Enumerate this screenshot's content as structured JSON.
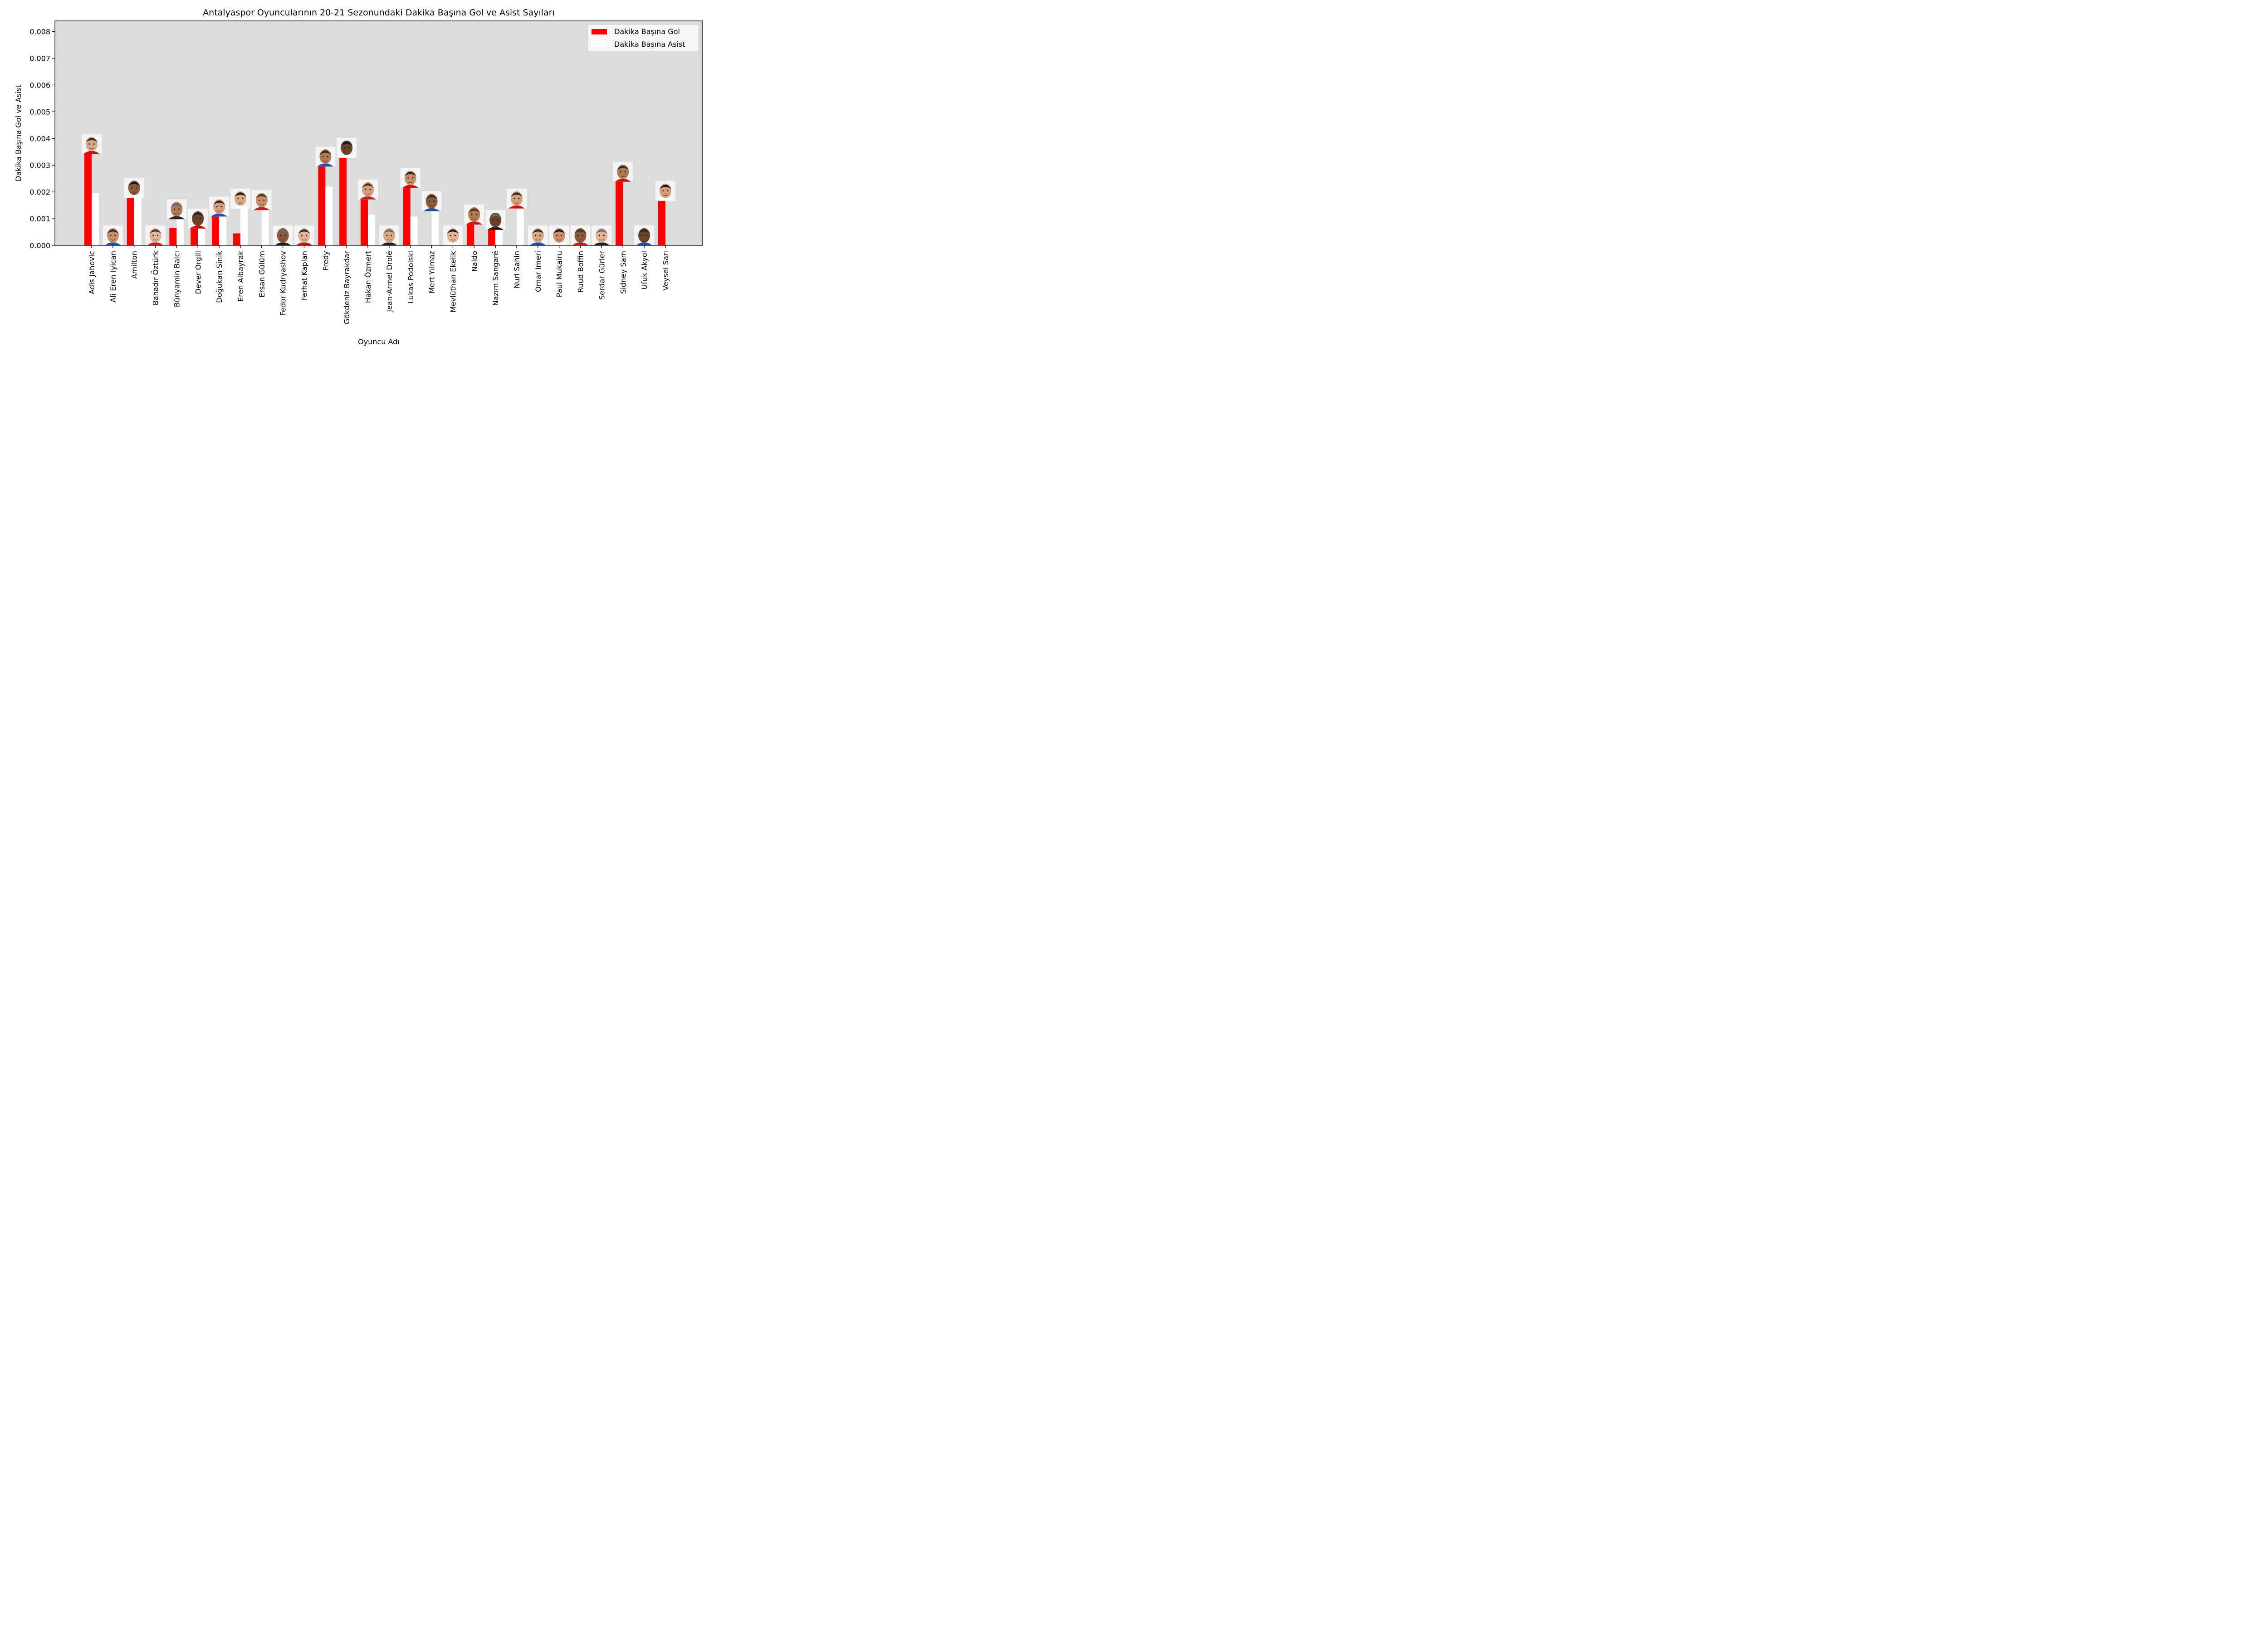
{
  "chart_data": {
    "type": "bar",
    "title": "Antalyaspor Oyuncularının 20-21 Sezonundaki Dakika Başına Gol ve Asist Sayıları",
    "xlabel": "Oyuncu Adı",
    "ylabel": "Dakika Başına Gol ve Asist",
    "ylim": [
      0,
      0.0084
    ],
    "yticks": [
      "0.000",
      "0.001",
      "0.002",
      "0.003",
      "0.004",
      "0.005",
      "0.006",
      "0.007",
      "0.008"
    ],
    "grid": false,
    "legend_position": "top-right",
    "plot_background": "#dcdcdc",
    "categories": [
      "Adis Jahovic",
      "Ali Eren Iyican",
      "Amilton",
      "Bahadır Öztürk",
      "Bünyamin Balcı",
      "Dever Orgill",
      "Doğukan Sinik",
      "Eren Albayrak",
      "Ersan Gülüm",
      "Fedor Kudryashov",
      "Ferhat Kaplan",
      "Fredy",
      "Gökdeniz Bayrakdar",
      "Hakan Özmert",
      "Jean-Armel Drolé",
      "Lukas Podolski",
      "Mert Yılmaz",
      "Mevlüthan Ekelik",
      "Naldo",
      "Nazım Sangaré",
      "Nuri Sahin",
      "Omar Imeri",
      "Paul Mukairu",
      "Ruud Boffin",
      "Serdar Gürler",
      "Sidney Sam",
      "Ufuk Akyol",
      "Veysel Sarı"
    ],
    "series": [
      {
        "name": "Dakika Başına Gol",
        "color": "#ff0000",
        "values": [
          0.00342,
          0,
          0.00178,
          0,
          0.00065,
          0.00063,
          0.00108,
          0.00045,
          0,
          0,
          0,
          0.00295,
          0.00328,
          0.00172,
          0,
          0.00215,
          0,
          0,
          0.00078,
          0.00058,
          0,
          0,
          0,
          0,
          0,
          0.00238,
          0,
          0.00167
        ]
      },
      {
        "name": "Dakika Başına Asist",
        "color": "#ffffff",
        "values": [
          0.00195,
          0,
          0.00178,
          0,
          0.00098,
          0.00063,
          0.00108,
          0.00138,
          0.00132,
          0,
          0,
          0.0022,
          0,
          0.00115,
          0,
          0.00108,
          0.00128,
          0,
          0,
          0.00058,
          0.00138,
          0,
          0,
          0,
          0,
          0,
          0,
          0
        ]
      }
    ]
  }
}
